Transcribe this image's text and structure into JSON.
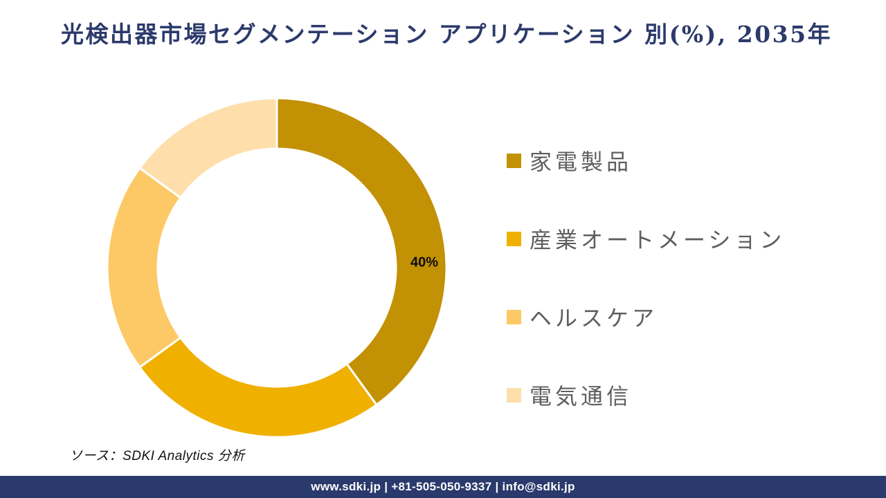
{
  "title": {
    "text": "光検出器市場セグメンテーション アプリケーション 別(%), 2035年"
  },
  "chart_data": {
    "type": "pie",
    "subtype": "donut",
    "title": "光検出器市場セグメンテーション アプリケーション 別(%), 2035年",
    "unit": "%",
    "year": "2035年",
    "categories": [
      "家電製品",
      "産業オートメーション",
      "ヘルスケア",
      "電気通信"
    ],
    "values": [
      40,
      25,
      20,
      15
    ],
    "colors": [
      "#C29104",
      "#F0B000",
      "#FDC966",
      "#FEDFAC"
    ],
    "data_labels": [
      "40%",
      "",
      "",
      ""
    ],
    "legend_position": "right",
    "start_angle_deg": 0,
    "direction": "clockwise",
    "inner_radius_ratio": 0.7,
    "separator_color": "#ffffff"
  },
  "source": {
    "text": "ソース：SDKI Analytics 分析"
  },
  "footer": {
    "text": "www.sdki.jp | +81-505-050-9337 | info@sdki.jp"
  },
  "colors": {
    "title_navy": "#2C3A6B",
    "footer_navy": "#2B3A6C",
    "legend_text_gray": "#5E5E5E",
    "data_label_black": "#0d0d0d"
  }
}
